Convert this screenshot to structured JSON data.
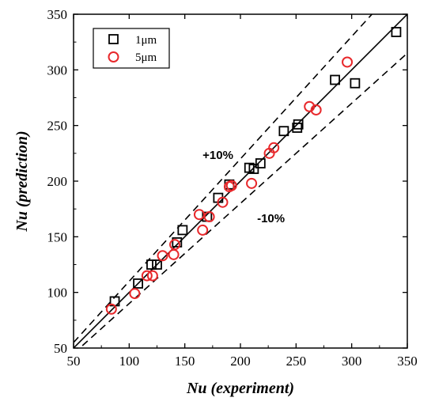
{
  "chart_data": {
    "type": "scatter",
    "xlabel": "Nu (experiment)",
    "ylabel": "Nu (prediction)",
    "xlim": [
      50,
      350
    ],
    "ylim": [
      50,
      350
    ],
    "xticks": [
      "50",
      "100",
      "150",
      "200",
      "250",
      "300",
      "350"
    ],
    "yticks": [
      "50",
      "100",
      "150",
      "200",
      "250",
      "300",
      "350"
    ],
    "grid": false,
    "legend_position": "top-left",
    "series": [
      {
        "name": "1μm",
        "marker": "square",
        "color": "#000000",
        "points": [
          [
            87,
            92
          ],
          [
            108,
            108
          ],
          [
            120,
            125
          ],
          [
            125,
            125
          ],
          [
            143,
            145
          ],
          [
            148,
            156
          ],
          [
            170,
            168
          ],
          [
            180,
            185
          ],
          [
            190,
            197
          ],
          [
            208,
            212
          ],
          [
            212,
            211
          ],
          [
            218,
            216
          ],
          [
            239,
            245
          ],
          [
            251,
            248
          ],
          [
            252,
            251
          ],
          [
            285,
            291
          ],
          [
            303,
            288
          ],
          [
            340,
            334
          ]
        ]
      },
      {
        "name": "5μm",
        "marker": "circle",
        "color": "#e8282b",
        "points": [
          [
            84,
            85
          ],
          [
            105,
            99
          ],
          [
            116,
            115
          ],
          [
            121,
            115
          ],
          [
            130,
            133
          ],
          [
            140,
            134
          ],
          [
            141,
            143
          ],
          [
            163,
            170
          ],
          [
            166,
            156
          ],
          [
            172,
            168
          ],
          [
            184,
            181
          ],
          [
            190,
            195
          ],
          [
            192,
            196
          ],
          [
            210,
            198
          ],
          [
            226,
            225
          ],
          [
            230,
            230
          ],
          [
            262,
            267
          ],
          [
            268,
            264
          ],
          [
            296,
            307
          ]
        ]
      }
    ],
    "reference_lines": [
      {
        "label": "",
        "slope": 1.0,
        "style": "solid"
      },
      {
        "label": "+10%",
        "slope": 1.1,
        "style": "dashed"
      },
      {
        "label": "-10%",
        "slope": 0.9,
        "style": "dashed"
      }
    ]
  }
}
